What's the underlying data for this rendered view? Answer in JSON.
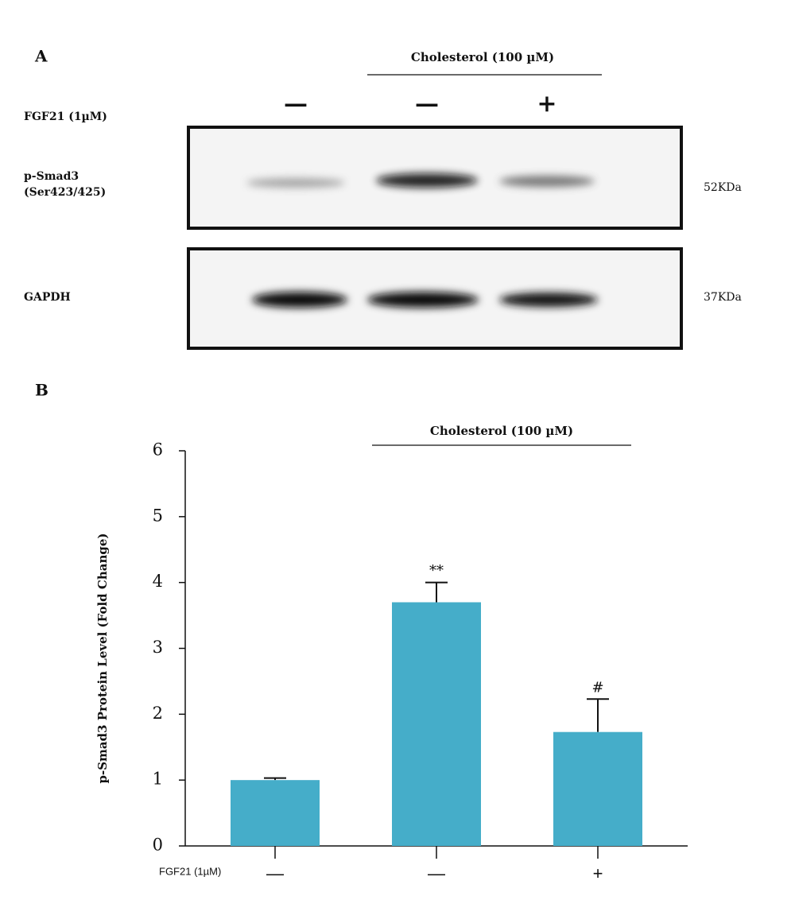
{
  "panel_a": {
    "label": "A",
    "cholesterol": "Cholesterol (100 µM)",
    "fgf21_label": "FGF21 (1µM)",
    "fgf21_signs": [
      "—",
      "—",
      "+"
    ],
    "rows": [
      {
        "name": "p-Smad3",
        "subname": "(Ser423/425)",
        "size": "52KDa"
      },
      {
        "name": "GAPDH",
        "size": "37KDa"
      }
    ]
  },
  "chart_data": {
    "type": "bar",
    "panel_label": "B",
    "group_label": "Cholesterol (100 µM)",
    "x_label": "FGF21 (1µM)",
    "y_label": "p-Smad3 Protein Level (Fold Change)",
    "categories": [
      "—",
      "—",
      "+"
    ],
    "values": [
      1.0,
      3.7,
      1.73
    ],
    "errors": [
      0.03,
      0.3,
      0.5
    ],
    "annotations": [
      null,
      "**",
      "#"
    ],
    "color": "#45adc9",
    "ylim": [
      0,
      6
    ],
    "yticks": [
      0,
      1,
      2,
      3,
      4,
      5,
      6
    ]
  }
}
